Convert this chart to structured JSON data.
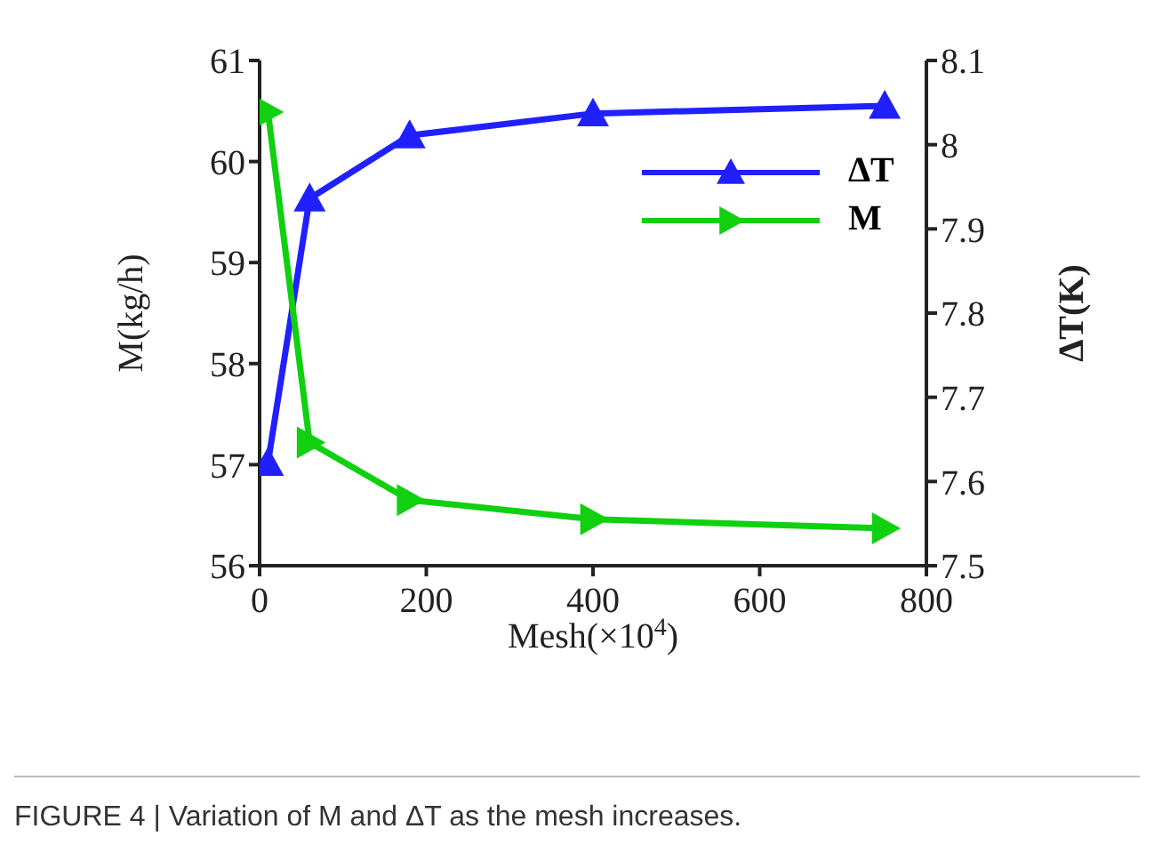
{
  "chart_data": {
    "type": "line",
    "x": [
      10,
      60,
      180,
      400,
      750
    ],
    "series": [
      {
        "name": "ΔT",
        "color": "#2020ff",
        "axis": "y2",
        "marker": "triangle",
        "values": [
          7.622,
          7.936,
          8.011,
          8.037,
          8.046
        ]
      },
      {
        "name": "M",
        "color": "#10d010",
        "marker": "triangle-right",
        "values": [
          60.49,
          57.22,
          56.65,
          56.46,
          56.37
        ]
      }
    ],
    "xlabel": "Mesh(×10$^{4}$)",
    "ylabel": "M(kg/h)",
    "y2label": "ΔT(K)",
    "xlim": [
      0,
      800
    ],
    "xticks": [
      0,
      200,
      400,
      600,
      800
    ],
    "ylim": [
      56,
      61
    ],
    "yticks": [
      56,
      57,
      58,
      59,
      60,
      61
    ],
    "y2lim": [
      7.5,
      8.1
    ],
    "y2ticks": [
      7.5,
      7.6,
      7.7,
      7.8,
      7.9,
      8,
      8.1
    ],
    "grid": false,
    "legend": "top right",
    "line_style": "solid",
    "annotations": [
      "FIGURE 4 | Variation of M and ΔT as the mesh increases."
    ]
  }
}
